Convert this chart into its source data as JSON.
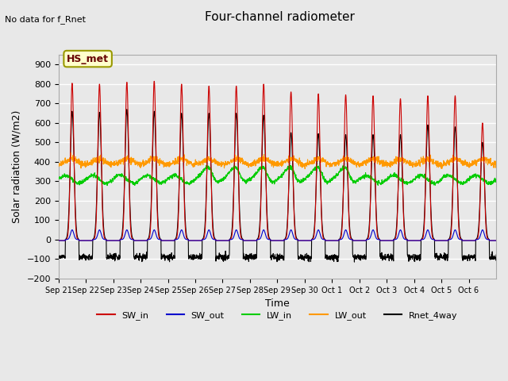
{
  "title": "Four-channel radiometer",
  "top_left_note": "No data for f_Rnet",
  "ylabel": "Solar radiation (W/m2)",
  "xlabel": "Time",
  "ylim": [
    -200,
    950
  ],
  "yticks": [
    -200,
    -100,
    0,
    100,
    200,
    300,
    400,
    500,
    600,
    700,
    800,
    900
  ],
  "x_labels": [
    "Sep 21",
    "Sep 22",
    "Sep 23",
    "Sep 24",
    "Sep 25",
    "Sep 26",
    "Sep 27",
    "Sep 28",
    "Sep 29",
    "Sep 30",
    "Oct 1",
    "Oct 2",
    "Oct 3",
    "Oct 4",
    "Oct 5",
    "Oct 6"
  ],
  "annotation_box": "HS_met",
  "colors": {
    "SW_in": "#cc0000",
    "SW_out": "#0000cc",
    "LW_in": "#00cc00",
    "LW_out": "#ff9900",
    "Rnet_4way": "#000000"
  },
  "background_color": "#e8e8e8",
  "plot_bg_color": "#e8e8e8",
  "grid_color": "#ffffff",
  "num_days": 16,
  "day_period": 144,
  "seed": 42,
  "sw_peaks": [
    805,
    800,
    810,
    815,
    800,
    790,
    790,
    800,
    760,
    750,
    745,
    740,
    725,
    740,
    740,
    600
  ],
  "sw_black_peaks": [
    660,
    655,
    670,
    660,
    650,
    650,
    650,
    640,
    550,
    545,
    540,
    540,
    540,
    590,
    580,
    500
  ]
}
